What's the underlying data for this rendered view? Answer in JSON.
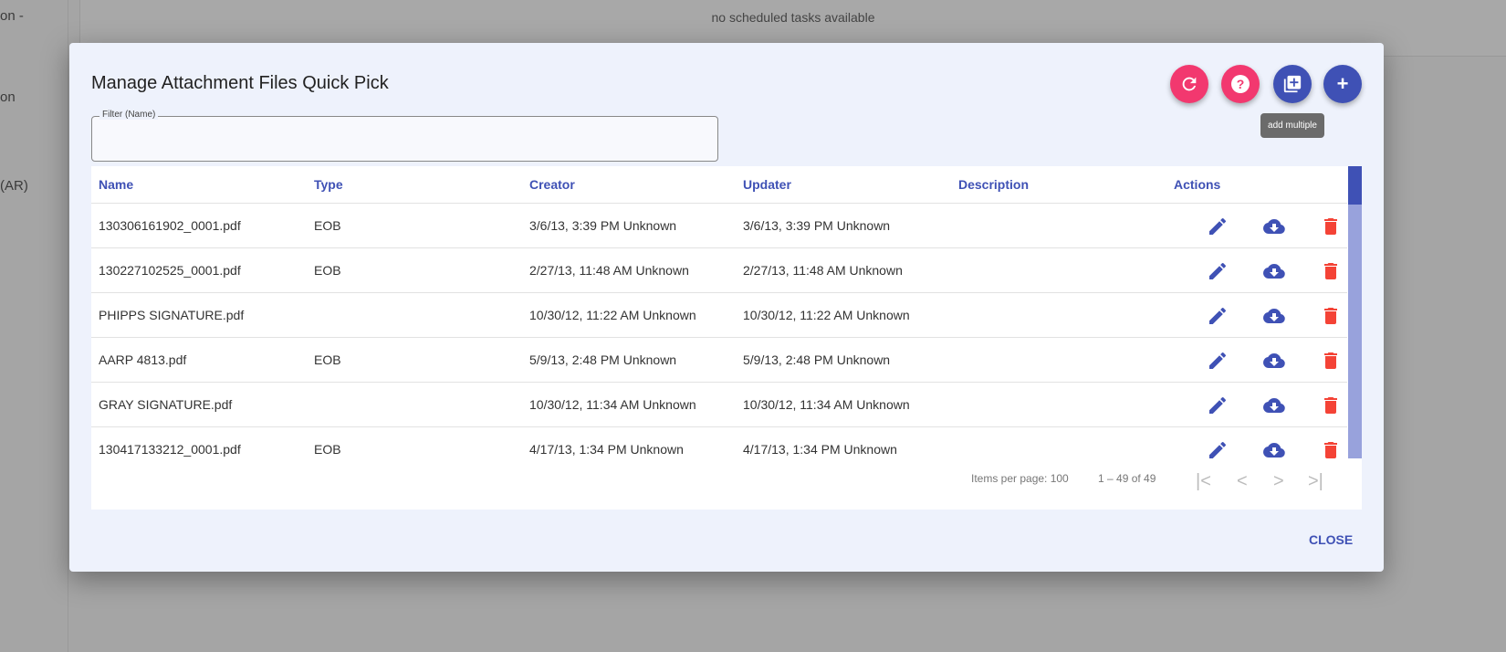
{
  "background": {
    "side_texts": [
      "on -",
      "on",
      "(AR)"
    ],
    "panel_message": "no scheduled tasks available"
  },
  "dialog": {
    "title": "Manage Attachment Files Quick Pick",
    "filter": {
      "label": "Filter (Name)",
      "value": ""
    },
    "toolbar": {
      "refresh": "refresh-icon",
      "help": "help-icon",
      "add_multiple": "library-add-icon",
      "add": "add-icon",
      "tooltip": "add multiple"
    },
    "columns": [
      "Name",
      "Type",
      "Creator",
      "Updater",
      "Description",
      "Actions"
    ],
    "rows": [
      {
        "name": "130306161902_0001.pdf",
        "type": "EOB",
        "creator": "3/6/13, 3:39 PM Unknown",
        "updater": "3/6/13, 3:39 PM Unknown",
        "description": ""
      },
      {
        "name": "130227102525_0001.pdf",
        "type": "EOB",
        "creator": "2/27/13, 11:48 AM Unknown",
        "updater": "2/27/13, 11:48 AM Unknown",
        "description": ""
      },
      {
        "name": "PHIPPS SIGNATURE.pdf",
        "type": "",
        "creator": "10/30/12, 11:22 AM Unknown",
        "updater": "10/30/12, 11:22 AM Unknown",
        "description": ""
      },
      {
        "name": "AARP 4813.pdf",
        "type": "EOB",
        "creator": "5/9/13, 2:48 PM Unknown",
        "updater": "5/9/13, 2:48 PM Unknown",
        "description": ""
      },
      {
        "name": "GRAY SIGNATURE.pdf",
        "type": "",
        "creator": "10/30/12, 11:34 AM Unknown",
        "updater": "10/30/12, 11:34 AM Unknown",
        "description": ""
      },
      {
        "name": "130417133212_0001.pdf",
        "type": "EOB",
        "creator": "4/17/13, 1:34 PM Unknown",
        "updater": "4/17/13, 1:34 PM Unknown",
        "description": ""
      }
    ],
    "pagination": {
      "items_per_page": "Items per page: 100",
      "range": "1 – 49 of 49"
    },
    "close_label": "CLOSE",
    "colors": {
      "primary": "#3f51b5",
      "accent": "#f2386f",
      "delete": "#f44336"
    }
  }
}
